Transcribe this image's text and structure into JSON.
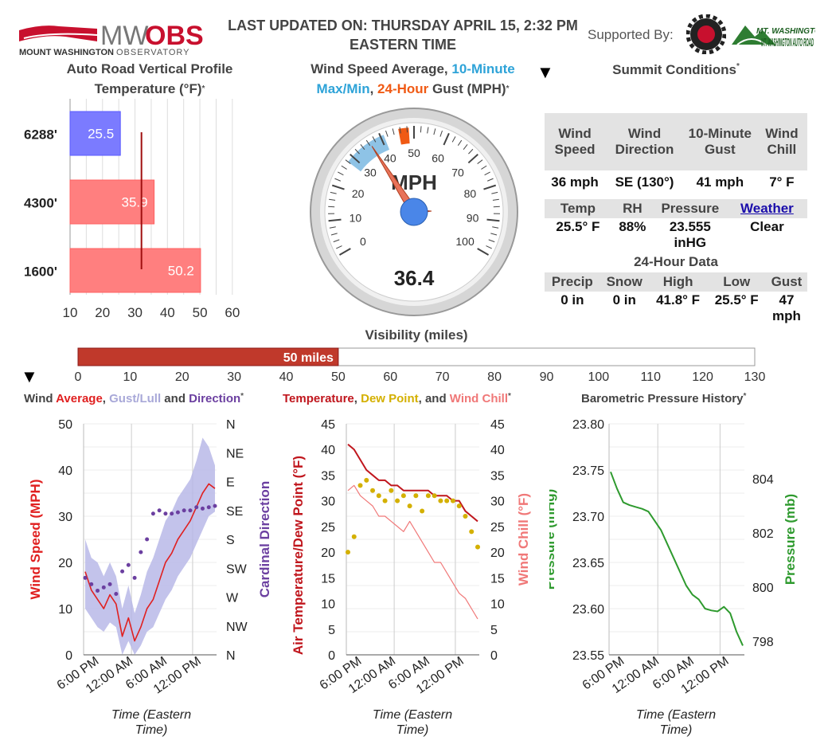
{
  "brand": {
    "logo_text_mw": "MW",
    "logo_text_obs": "OBS",
    "logo_sub_a": "MOUNT WASHINGTON",
    "logo_sub_b": "OBSERVATORY"
  },
  "header": {
    "updated_line1": "LAST UPDATED ON: THURSDAY APRIL 15, 2:32 PM",
    "updated_line2": "EASTERN TIME",
    "supported_by": "Supported By:",
    "sponsor_text": "MT. WASHINGTON AUTO ROAD"
  },
  "profile": {
    "title_line1": "Auto Road Vertical Profile",
    "title_line2": "Temperature (°F)",
    "star": "*",
    "rows": [
      {
        "elevation": "6288'",
        "value": 25.5,
        "label": "25.5",
        "color": "#7b7bff"
      },
      {
        "elevation": "4300'",
        "value": 35.9,
        "label": "35.9",
        "color": "#ff7f7f"
      },
      {
        "elevation": "1600'",
        "value": 50.2,
        "label": "50.2",
        "color": "#ff7f7f"
      }
    ],
    "freezing_marker": 32,
    "axis_min": 10,
    "axis_max": 62,
    "ticks": [
      "10",
      "20",
      "30",
      "40",
      "50",
      "60"
    ]
  },
  "gauge": {
    "title_a": "Wind Speed Average, ",
    "title_b": "10-Minute Max/Min",
    "title_c": ", ",
    "title_d": "24-Hour",
    "title_e": " Gust (MPH)",
    "star": "*",
    "unit": "MPH",
    "value": 36.4,
    "value_label": "36.4",
    "range_min": 28,
    "range_max": 41,
    "gust": 47,
    "ticks": [
      "0",
      "10",
      "20",
      "30",
      "40",
      "50",
      "60",
      "70",
      "80",
      "90",
      "100"
    ],
    "max": 100,
    "colors": {
      "band": "#8ec3e6",
      "gust": "#f05a14",
      "needle": "#e8735a",
      "hub": "#4a86e8"
    }
  },
  "summit": {
    "title": "Summit Conditions",
    "star": "*",
    "h1": [
      "Wind Speed",
      "Wind Direction",
      "10-Minute Gust",
      "Wind Chill"
    ],
    "v1": [
      "36 mph",
      "SE (130°)",
      "41 mph",
      "7° F"
    ],
    "h2": [
      "Temp",
      "RH",
      "Pressure",
      "Weather"
    ],
    "v2": [
      "25.5° F",
      "88%",
      "23.555 inHG",
      "Clear"
    ],
    "section24": "24-Hour Data",
    "h3": [
      "Precip",
      "Snow",
      "High",
      "Low",
      "Gust"
    ],
    "v3": [
      "0 in",
      "0 in",
      "41.8° F",
      "25.5° F",
      "47 mph"
    ]
  },
  "visibility": {
    "title": "Visibility (miles)",
    "value": 50,
    "label": "50 miles",
    "max": 130,
    "ticks": [
      "0",
      "10",
      "20",
      "30",
      "40",
      "50",
      "60",
      "70",
      "80",
      "90",
      "100",
      "110",
      "120",
      "130"
    ],
    "color": "#c0392b"
  },
  "charts": {
    "wind": {
      "title_a": "Wind ",
      "title_b": "Average",
      "title_c": ", ",
      "title_d": "Gust/Lull",
      "title_e": " and ",
      "title_f": "Direction",
      "star": "*",
      "ylabel": "Wind Speed (MPH)",
      "y2label": "Cardinal Direction",
      "yticks": [
        "50",
        "40",
        "30",
        "20",
        "10",
        "0"
      ],
      "dirticks": [
        "N",
        "NE",
        "E",
        "SE",
        "S",
        "SW",
        "W",
        "NW",
        "N"
      ],
      "xticks": [
        "6:00 PM",
        "12:00 AM",
        "6:00 AM",
        "12:00 PM"
      ],
      "xlabel": "Time (Eastern Time)"
    },
    "temp": {
      "title_a": "Temperature",
      "title_b": ", ",
      "title_c": "Dew Point",
      "title_d": ", and ",
      "title_e": "Wind Chill",
      "star": "*",
      "ylabel": "Air Temperature/Dew Point (°F)",
      "y2label": "Wind Chill (°F)",
      "yticks": [
        "45",
        "40",
        "35",
        "30",
        "25",
        "20",
        "15",
        "10",
        "5",
        "0"
      ],
      "xticks": [
        "6:00 PM",
        "12:00 AM",
        "6:00 AM",
        "12:00 PM"
      ],
      "xlabel": "Time (Eastern Time)"
    },
    "pressure": {
      "title": "Barometric Pressure History",
      "star": "*",
      "ylabel": "Pressure (inHg)",
      "y2label": "Pressure (mb)",
      "yticks": [
        "23.80",
        "23.75",
        "23.70",
        "23.65",
        "23.60",
        "23.55"
      ],
      "y2ticks": [
        "804",
        "802",
        "800",
        "798"
      ],
      "xticks": [
        "6:00 PM",
        "12:00 AM",
        "6:00 AM",
        "12:00 PM"
      ],
      "xlabel": "Time (Eastern Time)"
    }
  },
  "chart_data": [
    {
      "type": "line",
      "title": "Wind Average, Gust/Lull and Direction",
      "ylabel": "Wind Speed (MPH)",
      "ylim": [
        0,
        50
      ],
      "x_hours": [
        0,
        1,
        2,
        3,
        4,
        5,
        6,
        7,
        8,
        9,
        10,
        11,
        12,
        13,
        14,
        15,
        16,
        17,
        18,
        19,
        20,
        21
      ],
      "series": [
        {
          "name": "Wind Average",
          "values": [
            18,
            14,
            12,
            10,
            13,
            11,
            4,
            8,
            3,
            6,
            10,
            12,
            16,
            20,
            22,
            25,
            27,
            29,
            32,
            35,
            37,
            36
          ]
        },
        {
          "name": "Gust",
          "values": [
            25,
            21,
            20,
            17,
            20,
            17,
            10,
            15,
            9,
            13,
            18,
            21,
            25,
            29,
            31,
            34,
            36,
            38,
            42,
            47,
            45,
            41
          ]
        },
        {
          "name": "Lull",
          "values": [
            10,
            8,
            6,
            5,
            7,
            6,
            0,
            3,
            0,
            2,
            5,
            6,
            9,
            12,
            14,
            17,
            19,
            21,
            24,
            27,
            30,
            31
          ]
        },
        {
          "name": "Direction (deg)",
          "values": [
            240,
            250,
            260,
            255,
            250,
            265,
            230,
            220,
            240,
            200,
            180,
            140,
            135,
            140,
            140,
            138,
            135,
            135,
            130,
            132,
            130,
            128
          ]
        }
      ]
    },
    {
      "type": "line",
      "title": "Temperature, Dew Point, and Wind Chill",
      "ylabel": "Air Temperature/Dew Point (°F)",
      "ylim": [
        0,
        45
      ],
      "x_hours": [
        0,
        1,
        2,
        3,
        4,
        5,
        6,
        7,
        8,
        9,
        10,
        11,
        12,
        13,
        14,
        15,
        16,
        17,
        18,
        19,
        20,
        21
      ],
      "series": [
        {
          "name": "Temperature",
          "values": [
            41,
            40,
            38,
            36,
            35,
            34,
            34,
            33,
            33,
            32,
            32,
            32,
            32,
            32,
            31,
            31,
            31,
            30,
            30,
            28,
            27,
            26
          ]
        },
        {
          "name": "Dew Point",
          "values": [
            20,
            23,
            33,
            34,
            32,
            31,
            30,
            32,
            30,
            31,
            29,
            31,
            28,
            31,
            31,
            30,
            30,
            30,
            29,
            27,
            24,
            21
          ]
        },
        {
          "name": "Wind Chill",
          "values": [
            32,
            33,
            31,
            30,
            29,
            27,
            27,
            26,
            25,
            24,
            26,
            24,
            22,
            20,
            18,
            18,
            16,
            14,
            12,
            11,
            9,
            7
          ]
        }
      ]
    },
    {
      "type": "line",
      "title": "Barometric Pressure History",
      "ylabel": "Pressure (inHg)",
      "ylim": [
        23.55,
        23.8
      ],
      "x_hours": [
        0,
        1,
        2,
        3,
        4,
        5,
        6,
        7,
        8,
        9,
        10,
        11,
        12,
        13,
        14,
        15,
        16,
        17,
        18,
        19,
        20,
        21
      ],
      "series": [
        {
          "name": "Pressure",
          "values": [
            23.748,
            23.73,
            23.715,
            23.712,
            23.71,
            23.708,
            23.705,
            23.695,
            23.685,
            23.67,
            23.655,
            23.64,
            23.625,
            23.615,
            23.61,
            23.6,
            23.598,
            23.597,
            23.602,
            23.595,
            23.575,
            23.56
          ]
        }
      ]
    }
  ]
}
